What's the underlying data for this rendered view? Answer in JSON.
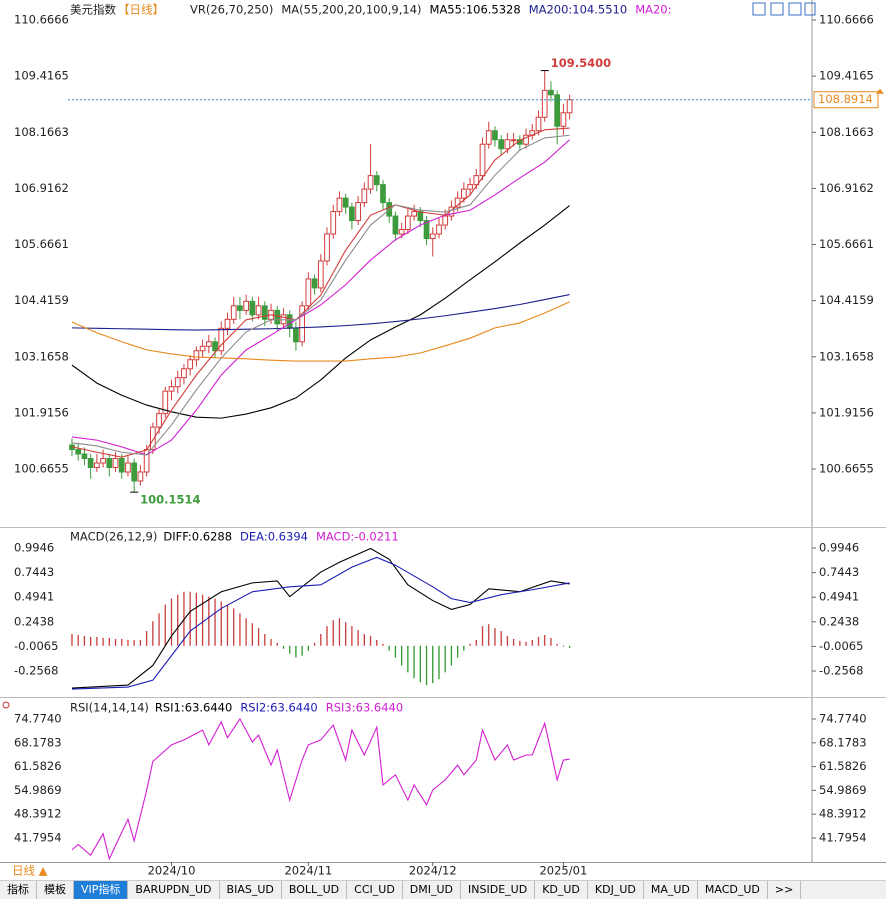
{
  "chart_data": [
    {
      "type": "candlestick",
      "title": "美元指数",
      "subtitle": "【日线】",
      "indicators": [
        "VR(26,70,250)",
        "MA(55,200,20,100,9,14)"
      ],
      "xlim": [
        -0.64,
        118.97
      ],
      "ylim": [
        99.375,
        111.112
      ],
      "yticks": [
        110.6666,
        109.4165,
        108.1663,
        106.9162,
        105.6661,
        104.4159,
        103.1658,
        101.9156,
        100.6655
      ],
      "xticks": [
        {
          "value": 16,
          "label": "2024/10"
        },
        {
          "value": 38,
          "label": "2024/11"
        },
        {
          "value": 58,
          "label": "2024/12"
        },
        {
          "value": 79,
          "label": "2025/01"
        }
      ],
      "up_color": "#d23c3c",
      "down_color": "#3d9b3d",
      "open": [
        101.2,
        101.1,
        101.0,
        100.9,
        100.7,
        100.8,
        100.9,
        100.7,
        100.9,
        100.6,
        100.8,
        100.4,
        100.6,
        101.1,
        101.6,
        101.9,
        102.4,
        102.5,
        102.7,
        102.9,
        103.1,
        103.3,
        103.4,
        103.5,
        103.3,
        103.8,
        104.0,
        104.3,
        104.2,
        104.4,
        104.1,
        104.3,
        104.0,
        104.2,
        103.9,
        104.1,
        103.8,
        103.5,
        104.3,
        104.9,
        104.7,
        105.3,
        105.9,
        106.4,
        106.7,
        106.5,
        106.2,
        106.6,
        106.9,
        107.2,
        107.0,
        106.6,
        106.3,
        105.9,
        106.0,
        106.3,
        106.4,
        106.2,
        105.8,
        105.9,
        106.1,
        106.3,
        106.5,
        106.7,
        106.9,
        107.0,
        107.2,
        107.9,
        108.2,
        108.0,
        107.8,
        108.0,
        108.0,
        107.9,
        108.1,
        108.2,
        108.5,
        109.1,
        109.0,
        108.3,
        108.6
      ],
      "high": [
        101.35,
        101.25,
        101.15,
        101.0,
        101.0,
        101.1,
        101.0,
        101.05,
        101.0,
        100.95,
        100.9,
        100.75,
        101.2,
        101.7,
        102.0,
        102.5,
        102.65,
        102.85,
        103.0,
        103.2,
        103.4,
        103.55,
        103.65,
        103.6,
        103.95,
        104.15,
        104.5,
        104.5,
        104.55,
        104.5,
        104.5,
        104.4,
        104.35,
        104.3,
        104.25,
        104.2,
        103.95,
        104.4,
        105.05,
        105.0,
        105.45,
        106.05,
        106.55,
        106.85,
        106.8,
        106.6,
        106.75,
        107.05,
        107.9,
        107.3,
        107.1,
        106.7,
        106.4,
        106.15,
        106.45,
        106.55,
        106.5,
        106.3,
        106.05,
        106.25,
        106.45,
        106.65,
        106.85,
        107.05,
        107.15,
        107.35,
        108.05,
        108.4,
        108.3,
        108.1,
        108.15,
        108.15,
        108.1,
        108.25,
        108.35,
        108.65,
        109.54,
        109.3,
        109.1,
        108.8,
        109.0
      ],
      "low": [
        100.95,
        100.85,
        100.75,
        100.45,
        100.6,
        100.7,
        100.5,
        100.6,
        100.45,
        100.5,
        100.1514,
        100.3,
        100.5,
        101.0,
        101.45,
        101.8,
        102.2,
        102.35,
        102.55,
        102.75,
        102.95,
        103.15,
        103.25,
        103.15,
        103.2,
        103.65,
        103.9,
        104.0,
        104.1,
        103.95,
        104.0,
        103.85,
        103.9,
        103.75,
        103.8,
        103.6,
        103.3,
        103.4,
        104.2,
        104.55,
        104.6,
        105.2,
        105.8,
        106.3,
        106.35,
        106.0,
        106.1,
        106.5,
        106.8,
        106.85,
        106.45,
        106.15,
        105.75,
        105.8,
        105.9,
        106.2,
        106.05,
        105.65,
        105.4,
        105.8,
        106.0,
        106.2,
        106.4,
        106.6,
        106.75,
        106.9,
        107.1,
        107.8,
        107.85,
        107.65,
        107.7,
        107.85,
        107.75,
        107.8,
        108.0,
        108.1,
        108.4,
        108.85,
        107.9,
        108.1,
        108.45
      ],
      "close": [
        101.1,
        101.0,
        100.9,
        100.7,
        100.8,
        100.9,
        100.7,
        100.9,
        100.6,
        100.8,
        100.4,
        100.6,
        101.1,
        101.6,
        101.9,
        102.4,
        102.5,
        102.7,
        102.9,
        103.1,
        103.3,
        103.4,
        103.5,
        103.3,
        103.8,
        104.0,
        104.3,
        104.2,
        104.4,
        104.1,
        104.3,
        104.0,
        104.2,
        103.9,
        104.1,
        103.8,
        103.5,
        104.3,
        104.9,
        104.7,
        105.3,
        105.9,
        106.4,
        106.7,
        106.5,
        106.2,
        106.6,
        106.9,
        107.2,
        107.0,
        106.6,
        106.3,
        105.9,
        106.0,
        106.3,
        106.4,
        106.2,
        105.8,
        105.9,
        106.1,
        106.3,
        106.5,
        106.7,
        106.9,
        107.0,
        107.2,
        107.9,
        108.2,
        108.0,
        107.8,
        108.0,
        108.0,
        107.9,
        108.1,
        108.2,
        108.5,
        109.1,
        109.0,
        108.3,
        108.6,
        108.89
      ],
      "series": [
        {
          "name": "MA55:106.5328",
          "color": "#000000",
          "x": [
            0,
            4,
            8,
            12,
            16,
            20,
            24,
            28,
            32,
            36,
            40,
            44,
            48,
            52,
            56,
            60,
            64,
            68,
            72,
            76,
            80
          ],
          "values": [
            102.98,
            102.58,
            102.31,
            102.09,
            101.94,
            101.82,
            101.8,
            101.89,
            102.03,
            102.25,
            102.65,
            103.14,
            103.54,
            103.83,
            104.1,
            104.47,
            104.88,
            105.28,
            105.7,
            106.1,
            106.5328
          ]
        },
        {
          "name": "MA200:104.5510",
          "color": "#1c1c8c",
          "x": [
            0,
            4,
            8,
            12,
            16,
            20,
            24,
            28,
            32,
            36,
            40,
            44,
            48,
            52,
            56,
            60,
            64,
            68,
            72,
            76,
            80
          ],
          "values": [
            103.81,
            103.8,
            103.79,
            103.78,
            103.77,
            103.76,
            103.77,
            103.78,
            103.79,
            103.81,
            103.83,
            103.86,
            103.9,
            103.95,
            104.01,
            104.08,
            104.16,
            104.24,
            104.33,
            104.44,
            104.551
          ]
        },
        {
          "name": "MA20:",
          "color": "#d21ed2",
          "x": [
            0,
            4,
            8,
            12,
            16,
            20,
            24,
            28,
            32,
            36,
            40,
            44,
            48,
            52,
            56,
            60,
            64,
            68,
            72,
            76,
            80
          ],
          "values": [
            101.38,
            101.31,
            101.16,
            100.98,
            101.31,
            101.98,
            102.76,
            103.32,
            103.65,
            103.99,
            104.32,
            104.77,
            105.32,
            105.77,
            106.1,
            106.32,
            106.43,
            106.77,
            107.15,
            107.5,
            108.0
          ]
        },
        {
          "color": "#e8891c",
          "x": [
            0,
            4,
            8,
            12,
            16,
            20,
            24,
            28,
            32,
            36,
            40,
            44,
            48,
            52,
            56,
            60,
            64,
            68,
            72,
            76,
            80
          ],
          "values": [
            103.94,
            103.7,
            103.5,
            103.32,
            103.23,
            103.16,
            103.14,
            103.12,
            103.09,
            103.07,
            103.07,
            103.07,
            103.12,
            103.16,
            103.25,
            103.41,
            103.58,
            103.81,
            103.92,
            104.14,
            104.39
          ]
        },
        {
          "color": "#d23c3c",
          "x": [
            0,
            4,
            8,
            12,
            16,
            20,
            24,
            28,
            32,
            36,
            40,
            44,
            48,
            52,
            56,
            60,
            64,
            68,
            72,
            76,
            80
          ],
          "values": [
            101.16,
            101.04,
            100.93,
            101.09,
            101.98,
            102.76,
            103.43,
            103.99,
            104.1,
            103.99,
            104.54,
            105.54,
            106.32,
            106.55,
            106.39,
            106.32,
            106.77,
            107.55,
            107.99,
            108.22,
            108.26
          ]
        },
        {
          "color": "#8c8c8c",
          "x": [
            0,
            4,
            8,
            12,
            16,
            20,
            24,
            28,
            32,
            36,
            40,
            44,
            48,
            52,
            56,
            60,
            64,
            68,
            72,
            76,
            80
          ],
          "values": [
            101.25,
            101.18,
            101.04,
            100.98,
            101.65,
            102.43,
            103.14,
            103.72,
            103.99,
            103.99,
            104.43,
            105.32,
            106.1,
            106.55,
            106.43,
            106.39,
            106.55,
            107.21,
            107.77,
            108.04,
            108.1
          ]
        }
      ],
      "annotations": [
        {
          "text": {
            "value": 109.54,
            "label": "109.5400"
          },
          "x": 76,
          "color": "#d23c3c"
        },
        {
          "text": 100.1514,
          "x": 10,
          "color": "#3d9b3d"
        }
      ],
      "last_price": 108.8914,
      "last_price_color": "#e8891c"
    },
    {
      "type": "macd",
      "title": "MACD(26,12,9)",
      "xlim": [
        -0.64,
        118.97
      ],
      "ylim": [
        -0.521,
        1.178
      ],
      "yticks": [
        0.9946,
        0.7443,
        0.4941,
        0.2438,
        -0.0065,
        -0.2568
      ],
      "series": [
        {
          "name": "DIFF:0.6288",
          "color": "#000000",
          "x": [
            0,
            9,
            13,
            16,
            19,
            24,
            29,
            33,
            35,
            40,
            43,
            48,
            51,
            54,
            58,
            61,
            64,
            67,
            72,
            77,
            80
          ],
          "values": [
            -0.43,
            -0.4,
            -0.2,
            0.1,
            0.35,
            0.55,
            0.64,
            0.66,
            0.5,
            0.75,
            0.85,
            0.99,
            0.88,
            0.62,
            0.46,
            0.37,
            0.42,
            0.58,
            0.55,
            0.66,
            0.6288
          ]
        },
        {
          "name": "DEA:0.6394",
          "color": "#1c1cb4",
          "x": [
            0,
            9,
            13,
            16,
            19,
            24,
            29,
            35,
            40,
            45,
            49,
            52,
            58,
            61,
            64,
            69,
            74,
            80
          ],
          "values": [
            -0.44,
            -0.42,
            -0.35,
            -0.1,
            0.15,
            0.38,
            0.55,
            0.6,
            0.62,
            0.8,
            0.9,
            0.82,
            0.6,
            0.48,
            0.44,
            0.52,
            0.57,
            0.6394
          ]
        }
      ],
      "histogram": {
        "name": "MACD:-0.0211",
        "color": "#d21ed2",
        "up_color": "#c83c3c",
        "down_color": "#2e9a2e",
        "values": [
          0.12,
          0.11,
          0.1,
          0.09,
          0.09,
          0.08,
          0.08,
          0.07,
          0.07,
          0.06,
          0.06,
          0.06,
          0.15,
          0.25,
          0.33,
          0.42,
          0.48,
          0.52,
          0.55,
          0.55,
          0.54,
          0.52,
          0.5,
          0.48,
          0.45,
          0.42,
          0.38,
          0.33,
          0.28,
          0.23,
          0.18,
          0.12,
          0.07,
          0.03,
          -0.03,
          -0.08,
          -0.12,
          -0.1,
          -0.05,
          0.03,
          0.12,
          0.2,
          0.26,
          0.28,
          0.24,
          0.2,
          0.16,
          0.12,
          0.1,
          0.06,
          0.02,
          -0.05,
          -0.12,
          -0.2,
          -0.27,
          -0.33,
          -0.37,
          -0.4,
          -0.38,
          -0.34,
          -0.27,
          -0.2,
          -0.12,
          -0.05,
          0.02,
          0.06,
          0.2,
          0.22,
          0.18,
          0.15,
          0.1,
          0.07,
          0.05,
          0.04,
          0.06,
          0.09,
          0.11,
          0.08,
          0.02,
          -0.01,
          -0.0211
        ]
      }
    },
    {
      "type": "line",
      "title": "RSI(14,14,14)",
      "xlim": [
        -0.64,
        118.97
      ],
      "ylim": [
        35.14,
        80.04
      ],
      "yticks": [
        {
          "value": 74.774,
          "label": "74.7740"
        },
        68.1783,
        61.5826,
        54.9869,
        48.3912,
        41.7954
      ],
      "legend": [
        {
          "name": "RSI1:63.6440",
          "color": "#000000"
        },
        {
          "name": "RSI2:63.6440",
          "color": "#1c1cb4"
        },
        {
          "name": "RSI3:63.6440",
          "color": "#d21ed2"
        }
      ],
      "series": [
        {
          "color": "#d21ed2",
          "x": [
            0,
            1,
            3,
            5,
            6,
            9,
            10,
            12,
            13,
            16,
            18,
            21,
            22,
            24,
            25,
            27,
            29,
            30,
            32,
            33,
            35,
            37,
            38,
            40,
            42,
            44,
            45,
            47,
            49,
            50,
            52,
            54,
            55,
            57,
            58,
            60,
            62,
            63,
            65,
            66,
            68,
            70,
            71,
            73,
            74,
            76,
            78,
            79,
            80
          ],
          "values": [
            38.5,
            40,
            37,
            43,
            36,
            47,
            41,
            55,
            63,
            67.6,
            69,
            71.7,
            67.6,
            74,
            69.6,
            74.8,
            68.4,
            70.3,
            62,
            66.2,
            52.3,
            63.4,
            67.6,
            69,
            73.1,
            63.4,
            71.7,
            64.8,
            72.5,
            56.5,
            59.3,
            52.3,
            56.5,
            51,
            55.1,
            57.9,
            62,
            59.3,
            63.4,
            71.7,
            63.4,
            67.6,
            63.4,
            64.8,
            64.8,
            73.6,
            57.9,
            63.4,
            63.644
          ]
        }
      ]
    }
  ],
  "footer": {
    "period": "日线 ▲",
    "tabs": [
      "指标",
      "模板",
      "VIP指标",
      "BARUPDN_UD",
      "BIAS_UD",
      "BOLL_UD",
      "CCI_UD",
      "DMI_UD",
      "INSIDE_UD",
      "KD_UD",
      "KDJ_UD",
      "MA_UD",
      "MACD_UD",
      ">>"
    ]
  }
}
